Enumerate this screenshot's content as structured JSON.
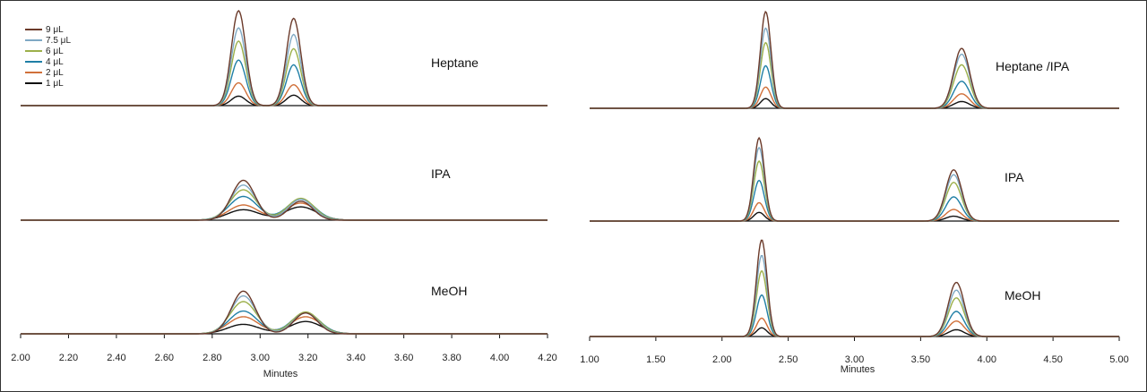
{
  "chart_data": [
    {
      "type": "line",
      "xlabel": "Minutes",
      "xlim": [
        2.0,
        4.2
      ],
      "x_ticks": [
        "2.00",
        "2.20",
        "2.40",
        "2.60",
        "2.80",
        "3.00",
        "3.20",
        "3.40",
        "3.60",
        "3.80",
        "4.00",
        "4.20"
      ],
      "legend": {
        "placement": "top-left",
        "entries": [
          {
            "label": "9 μL",
            "color": "#6b3a2a"
          },
          {
            "label": "7.5 μL",
            "color": "#7fa9c4"
          },
          {
            "label": "6 μL",
            "color": "#9cb04a"
          },
          {
            "label": "4 μL",
            "color": "#1f7fa6"
          },
          {
            "label": "2 μL",
            "color": "#d0703a"
          },
          {
            "label": "1 μL",
            "color": "#111111"
          }
        ]
      },
      "panels": [
        {
          "label": "Heptane",
          "peaks": [
            {
              "x": 2.91,
              "heights": [
                1.0,
                0.82,
                0.68,
                0.48,
                0.24,
                0.1
              ]
            },
            {
              "x": 3.14,
              "heights": [
                0.92,
                0.75,
                0.6,
                0.43,
                0.22,
                0.11
              ]
            }
          ]
        },
        {
          "label": "IPA",
          "peaks": [
            {
              "x": 2.93,
              "heights": [
                0.42,
                0.37,
                0.32,
                0.25,
                0.16,
                0.11
              ]
            },
            {
              "x": 3.17,
              "heights": [
                0.2,
                0.22,
                0.23,
                0.22,
                0.18,
                0.14
              ]
            }
          ]
        },
        {
          "label": "MeOH",
          "peaks": [
            {
              "x": 2.93,
              "heights": [
                0.45,
                0.4,
                0.34,
                0.24,
                0.18,
                0.1
              ]
            },
            {
              "x": 3.19,
              "heights": [
                0.22,
                0.22,
                0.23,
                0.22,
                0.18,
                0.13
              ]
            }
          ]
        }
      ]
    },
    {
      "type": "line",
      "xlabel": "Minutes",
      "xlim": [
        1.0,
        5.0
      ],
      "x_ticks": [
        "1.00",
        "1.50",
        "2.00",
        "2.50",
        "3.00",
        "3.50",
        "4.00",
        "4.50",
        "5.00"
      ],
      "panels": [
        {
          "label": "Heptane /IPA",
          "peaks": [
            {
              "x": 2.33,
              "heights": [
                1.0,
                0.83,
                0.68,
                0.44,
                0.22,
                0.1
              ]
            },
            {
              "x": 3.81,
              "heights": [
                0.62,
                0.56,
                0.45,
                0.28,
                0.15,
                0.07
              ]
            }
          ]
        },
        {
          "label": "IPA",
          "peaks": [
            {
              "x": 2.28,
              "heights": [
                0.86,
                0.76,
                0.62,
                0.42,
                0.19,
                0.09
              ]
            },
            {
              "x": 3.75,
              "heights": [
                0.53,
                0.48,
                0.4,
                0.25,
                0.12,
                0.05
              ]
            }
          ]
        },
        {
          "label": "MeOH",
          "peaks": [
            {
              "x": 2.3,
              "heights": [
                1.0,
                0.84,
                0.68,
                0.43,
                0.19,
                0.09
              ]
            },
            {
              "x": 3.77,
              "heights": [
                0.56,
                0.48,
                0.4,
                0.26,
                0.16,
                0.07
              ]
            }
          ]
        }
      ]
    }
  ]
}
